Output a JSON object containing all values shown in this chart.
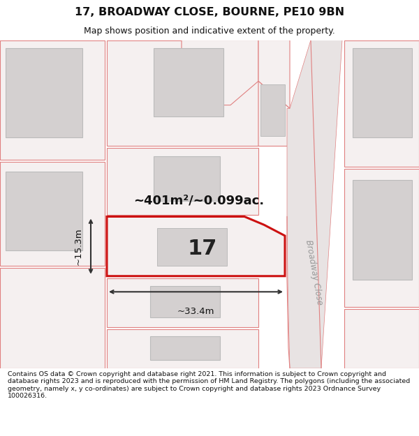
{
  "title": "17, BROADWAY CLOSE, BOURNE, PE10 9BN",
  "subtitle": "Map shows position and indicative extent of the property.",
  "footer": "Contains OS data © Crown copyright and database right 2021. This information is subject to Crown copyright and database rights 2023 and is reproduced with the permission of HM Land Registry. The polygons (including the associated geometry, namely x, y co-ordinates) are subject to Crown copyright and database rights 2023 Ordnance Survey 100026316.",
  "area_label": "~401m²/~0.099ac.",
  "width_label": "~33.4m",
  "height_label": "~15.3m",
  "number_label": "17",
  "map_bg": "#f5f0f0",
  "building_fill": "#d4d0d0",
  "plot_outline_color": "#e08080",
  "highlight_fill": "#f5f0f0",
  "highlight_outline": "#cc1111",
  "road_label": "Broadway Close",
  "road_label_color": "#999999",
  "road_fill": "#e8e4e4",
  "dim_color": "#333333"
}
